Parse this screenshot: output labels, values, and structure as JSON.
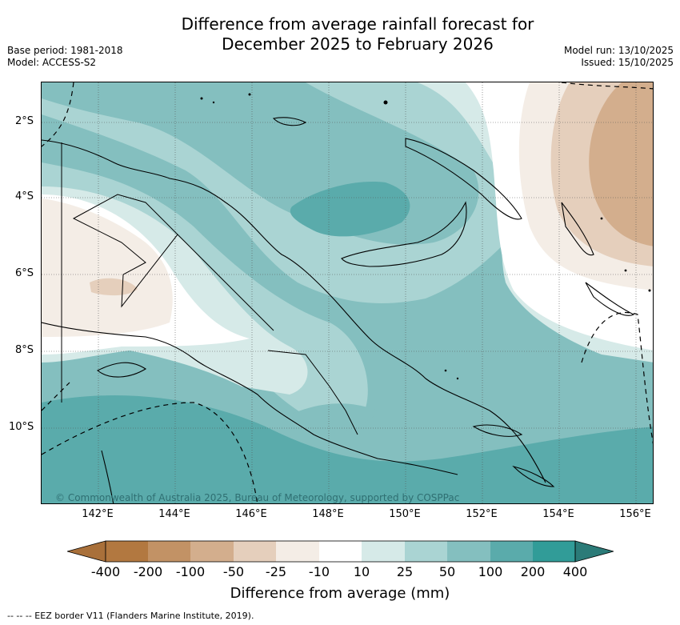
{
  "title": {
    "line1": "Difference from average rainfall forecast for",
    "line2": "December 2025 to February 2026"
  },
  "meta": {
    "base_period": "Base period: 1981-2018",
    "model": "Model: ACCESS-S2",
    "model_run": "Model run: 13/10/2025",
    "issued": "Issued: 15/10/2025"
  },
  "map": {
    "copyright": "© Commonwealth of Australia 2025, Bureau of Meteorology, supported by COSPPac",
    "lat_labels": [
      "2°S",
      "4°S",
      "6°S",
      "8°S",
      "10°S"
    ],
    "lon_labels": [
      "142°E",
      "144°E",
      "146°E",
      "148°E",
      "150°E",
      "152°E",
      "154°E",
      "156°E"
    ]
  },
  "colorbar": {
    "title": "Difference from average (mm)",
    "tick_labels": [
      "-400",
      "-200",
      "-100",
      "-50",
      "-25",
      "-10",
      "10",
      "25",
      "50",
      "100",
      "200",
      "400"
    ],
    "colors": [
      "#a9703a",
      "#b27840",
      "#c29265",
      "#d3ae8d",
      "#e5cfbc",
      "#f4ede6",
      "#ffffff",
      "#d6eae8",
      "#aad4d3",
      "#84bfbf",
      "#5aabab",
      "#319c98",
      "#2b7b78"
    ]
  },
  "footnote": "-- -- -- EEZ border V11 (Flanders Marine Institute, 2019)."
}
